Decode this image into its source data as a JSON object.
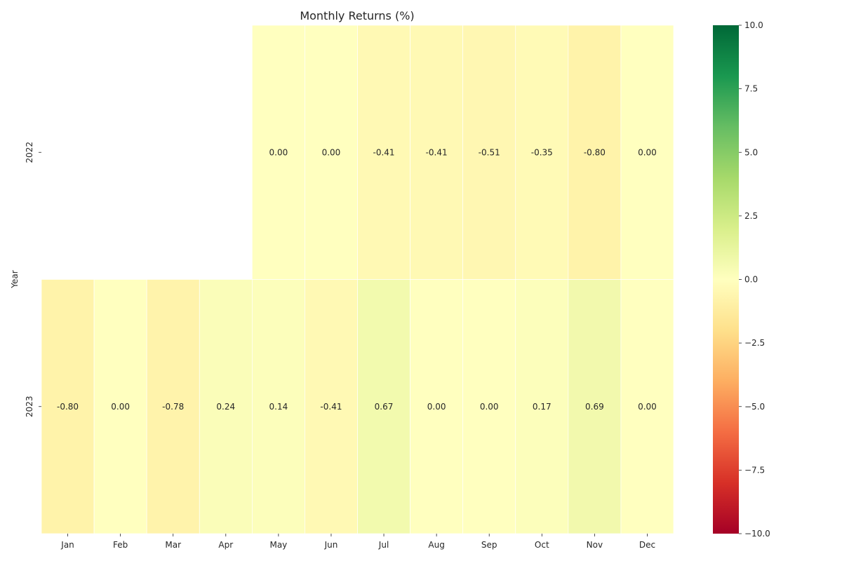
{
  "chart_data": {
    "type": "heatmap",
    "title": "Monthly Returns (%)",
    "xlabel": "",
    "ylabel": "Year",
    "x_categories": [
      "Jan",
      "Feb",
      "Mar",
      "Apr",
      "May",
      "Jun",
      "Jul",
      "Aug",
      "Sep",
      "Oct",
      "Nov",
      "Dec"
    ],
    "y_categories": [
      "2022",
      "2023"
    ],
    "values": [
      [
        null,
        null,
        null,
        null,
        0.0,
        0.0,
        -0.41,
        -0.41,
        -0.51,
        -0.35,
        -0.8,
        0.0
      ],
      [
        -0.8,
        0.0,
        -0.78,
        0.24,
        0.14,
        -0.41,
        0.67,
        0.0,
        0.0,
        0.17,
        0.69,
        0.0
      ]
    ],
    "value_format_decimals": 2,
    "colorbar": {
      "colormap": "RdYlGn",
      "range": [
        -10.0,
        10.0
      ],
      "ticks": [
        10.0,
        7.5,
        5.0,
        2.5,
        0.0,
        -2.5,
        -5.0,
        -7.5,
        -10.0
      ],
      "tick_labels": [
        "10.0",
        "7.5",
        "5.0",
        "2.5",
        "0.0",
        "−2.5",
        "−5.0",
        "−7.5",
        "−10.0"
      ]
    },
    "grid": false,
    "colors": {
      "cell_border": "#ffffff",
      "text": "#262626"
    }
  }
}
